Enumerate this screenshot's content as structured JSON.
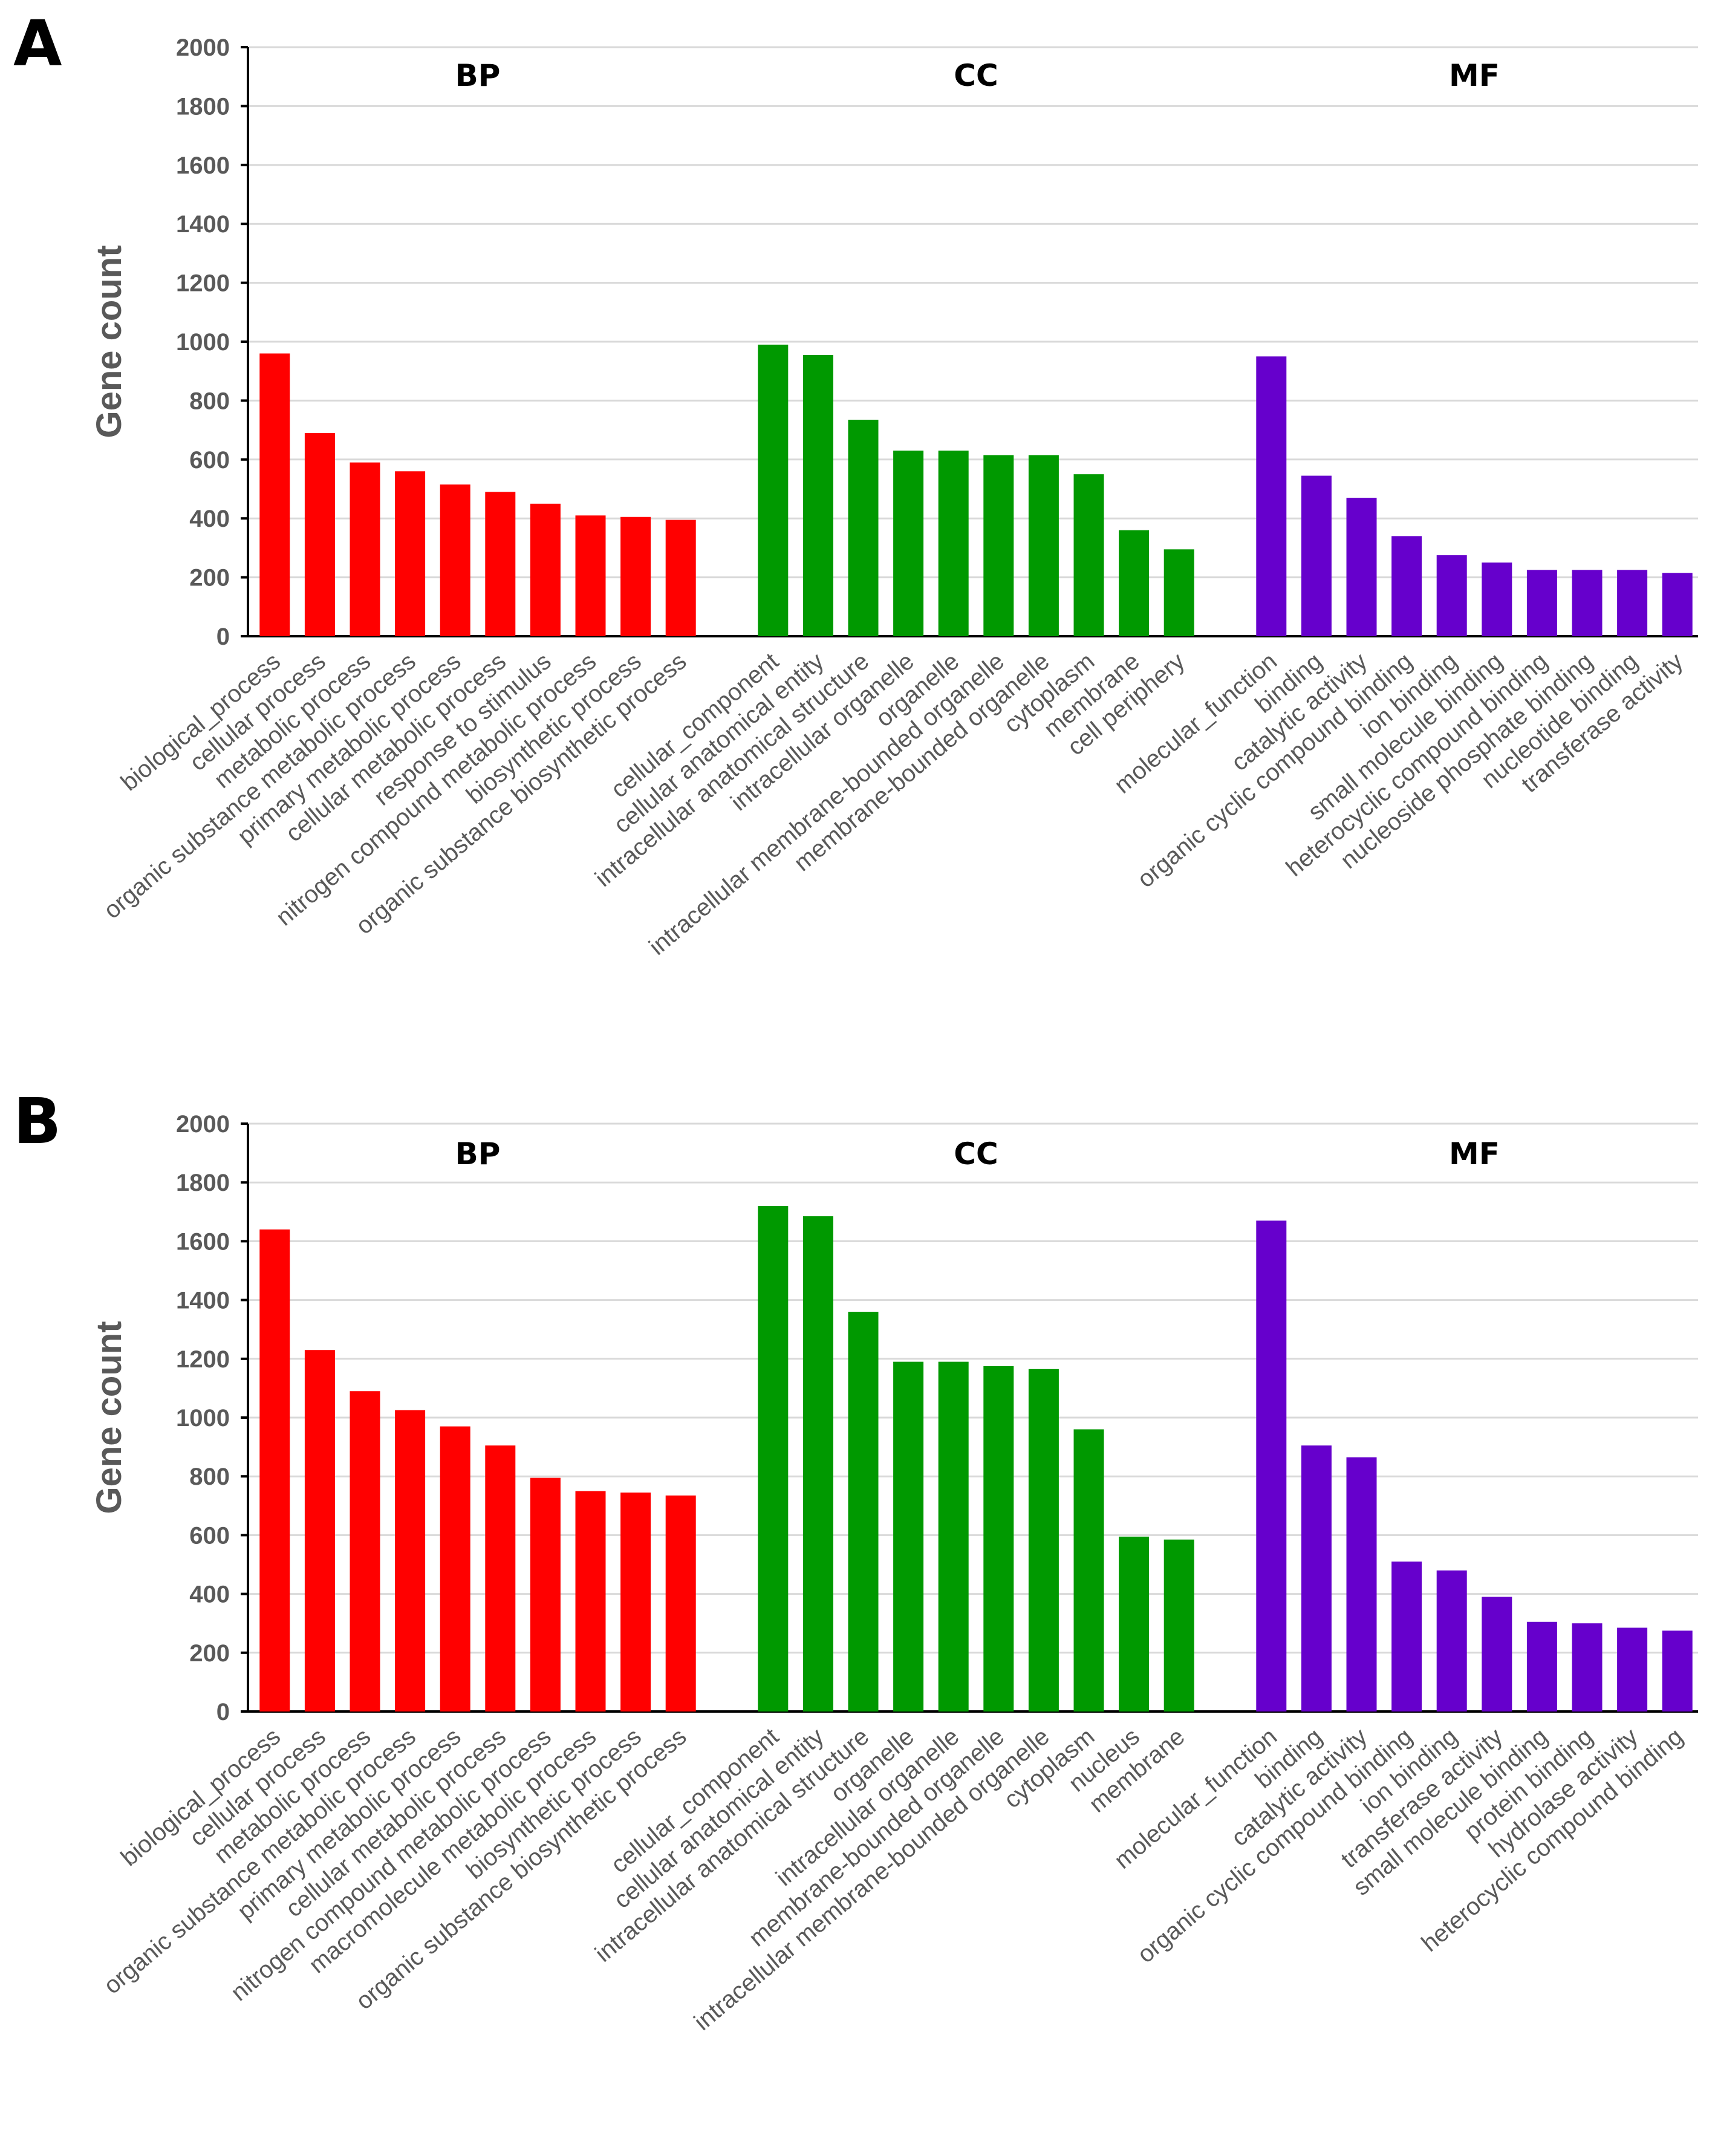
{
  "chart_data": [
    {
      "type": "bar",
      "panel": "A",
      "ylabel": "Gene count",
      "ylim": [
        0,
        2000
      ],
      "yticks": [
        0,
        200,
        400,
        600,
        800,
        1000,
        1200,
        1400,
        1600,
        1800,
        2000
      ],
      "grid": true,
      "groups": [
        {
          "label": "BP",
          "color": "#ff0000",
          "categories": [
            "biological_process",
            "cellular process",
            "metabolic process",
            "organic substance metabolic process",
            "primary metabolic process",
            "cellular metabolic process",
            "response to stimulus",
            "nitrogen compound metabolic process",
            "biosynthetic process",
            "organic substance biosynthetic process"
          ],
          "values": [
            960,
            690,
            590,
            560,
            515,
            490,
            450,
            410,
            405,
            395
          ]
        },
        {
          "label": "CC",
          "color": "#009900",
          "categories": [
            "cellular_component",
            "cellular anatomical entity",
            "intracellular anatomical structure",
            "intracellular organelle",
            "organelle",
            "intracellular membrane-bounded organelle",
            "membrane-bounded organelle",
            "cytoplasm",
            "membrane",
            "cell periphery"
          ],
          "values": [
            990,
            955,
            735,
            630,
            630,
            615,
            615,
            550,
            360,
            295
          ]
        },
        {
          "label": "MF",
          "color": "#6600cc",
          "categories": [
            "molecular_function",
            "binding",
            "catalytic activity",
            "organic cyclic compound binding",
            "ion binding",
            "small molecule binding",
            "heterocyclic compound binding",
            "nucleoside phosphate binding",
            "nucleotide binding",
            "transferase activity"
          ],
          "values": [
            950,
            545,
            470,
            340,
            275,
            250,
            225,
            225,
            225,
            215
          ]
        }
      ]
    },
    {
      "type": "bar",
      "panel": "B",
      "ylabel": "Gene count",
      "ylim": [
        0,
        2000
      ],
      "yticks": [
        0,
        200,
        400,
        600,
        800,
        1000,
        1200,
        1400,
        1600,
        1800,
        2000
      ],
      "grid": true,
      "groups": [
        {
          "label": "BP",
          "color": "#ff0000",
          "categories": [
            "biological_process",
            "cellular process",
            "metabolic process",
            "organic substance metabolic process",
            "primary metabolic process",
            "cellular metabolic process",
            "nitrogen compound metabolic process",
            "macromolecule metabolic process",
            "biosynthetic process",
            "organic substance biosynthetic process"
          ],
          "values": [
            1640,
            1230,
            1090,
            1025,
            970,
            905,
            795,
            750,
            745,
            735
          ]
        },
        {
          "label": "CC",
          "color": "#009900",
          "categories": [
            "cellular_component",
            "cellular anatomical entity",
            "intracellular anatomical structure",
            "organelle",
            "intracellular organelle",
            "membrane-bounded organelle",
            "intracellular membrane-bounded organelle",
            "cytoplasm",
            "nucleus",
            "membrane"
          ],
          "values": [
            1720,
            1685,
            1360,
            1190,
            1190,
            1175,
            1165,
            960,
            595,
            585
          ]
        },
        {
          "label": "MF",
          "color": "#6600cc",
          "categories": [
            "molecular_function",
            "binding",
            "catalytic activity",
            "organic cyclic compound binding",
            "ion binding",
            "transferase activity",
            "small molecule binding",
            "protein binding",
            "hydrolase activity",
            "heterocyclic compound binding"
          ],
          "values": [
            1670,
            905,
            865,
            510,
            480,
            390,
            305,
            300,
            285,
            275
          ]
        }
      ]
    }
  ]
}
